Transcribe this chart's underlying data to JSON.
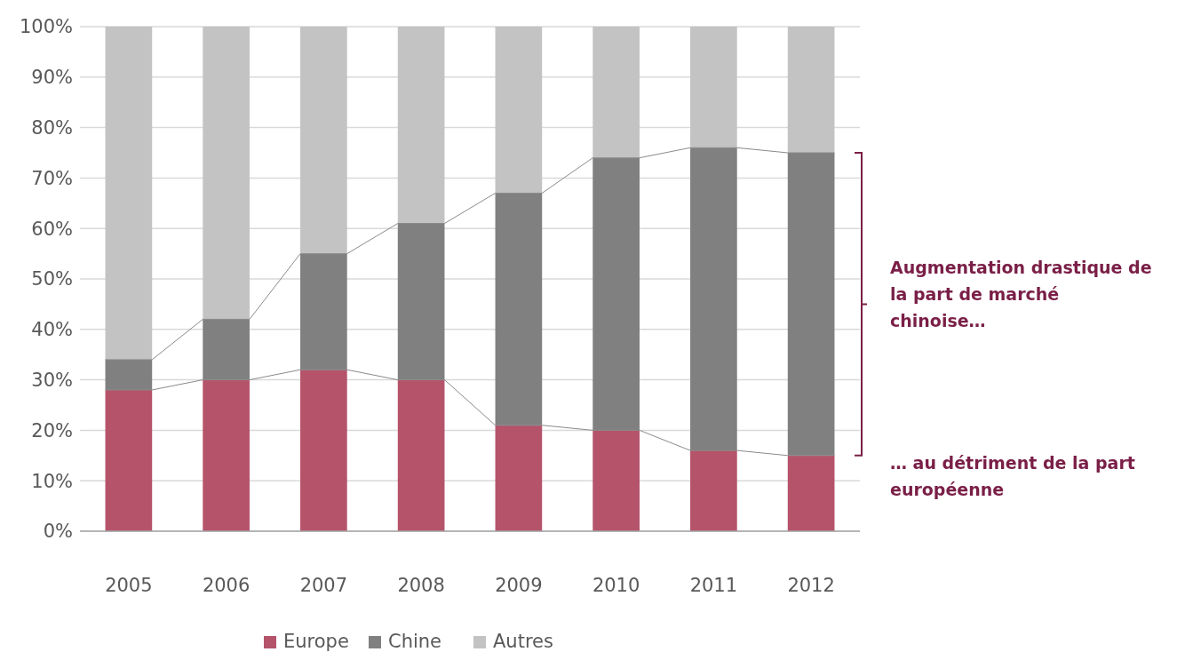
{
  "chart_data": {
    "type": "bar",
    "stacked": true,
    "categories": [
      "2005",
      "2006",
      "2007",
      "2008",
      "2009",
      "2010",
      "2011",
      "2012"
    ],
    "series": [
      {
        "name": "Europe",
        "color": "#b5536b",
        "values": [
          28,
          30,
          32,
          30,
          21,
          20,
          16,
          15
        ]
      },
      {
        "name": "Chine",
        "color": "#808080",
        "values": [
          6,
          12,
          23,
          31,
          46,
          54,
          60,
          60
        ]
      },
      {
        "name": "Autres",
        "color": "#c3c3c3",
        "values": [
          66,
          58,
          45,
          39,
          33,
          26,
          24,
          25
        ]
      }
    ],
    "ylim": [
      0,
      100
    ],
    "yticks": [
      {
        "value": 0,
        "label": "0%"
      },
      {
        "value": 10,
        "label": "10%"
      },
      {
        "value": 20,
        "label": "20%"
      },
      {
        "value": 30,
        "label": "30%"
      },
      {
        "value": 40,
        "label": "40%"
      },
      {
        "value": 50,
        "label": "50%"
      },
      {
        "value": 60,
        "label": "60%"
      },
      {
        "value": 70,
        "label": "70%"
      },
      {
        "value": 80,
        "label": "80%"
      },
      {
        "value": 90,
        "label": "90%"
      },
      {
        "value": 100,
        "label": "100%"
      }
    ],
    "grid": "y",
    "legend": "bottom",
    "annotations": [
      "Augmentation drastique de la part de marché chinoise…",
      "… au détriment de la part européenne"
    ]
  }
}
